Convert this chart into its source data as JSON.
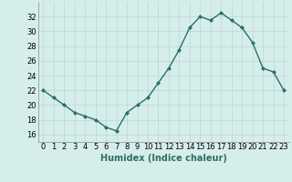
{
  "x": [
    0,
    1,
    2,
    3,
    4,
    5,
    6,
    7,
    8,
    9,
    10,
    11,
    12,
    13,
    14,
    15,
    16,
    17,
    18,
    19,
    20,
    21,
    22,
    23
  ],
  "y": [
    22,
    21,
    20,
    19,
    18.5,
    18,
    17,
    16.5,
    19,
    20,
    21,
    23,
    25,
    27.5,
    30.5,
    32,
    31.5,
    32.5,
    31.5,
    30.5,
    28.5,
    25,
    24.5,
    22
  ],
  "line_color": "#2e6e65",
  "marker": "D",
  "marker_size": 2,
  "bg_color": "#d6eeeb",
  "grid_color": "#b8d8d4",
  "xlabel": "Humidex (Indice chaleur)",
  "xlabel_fontsize": 7,
  "ylim": [
    15,
    34
  ],
  "xlim": [
    -0.5,
    23.5
  ],
  "yticks": [
    16,
    18,
    20,
    22,
    24,
    26,
    28,
    30,
    32
  ],
  "xticks": [
    0,
    1,
    2,
    3,
    4,
    5,
    6,
    7,
    8,
    9,
    10,
    11,
    12,
    13,
    14,
    15,
    16,
    17,
    18,
    19,
    20,
    21,
    22,
    23
  ],
  "tick_fontsize": 6,
  "linewidth": 1.0
}
